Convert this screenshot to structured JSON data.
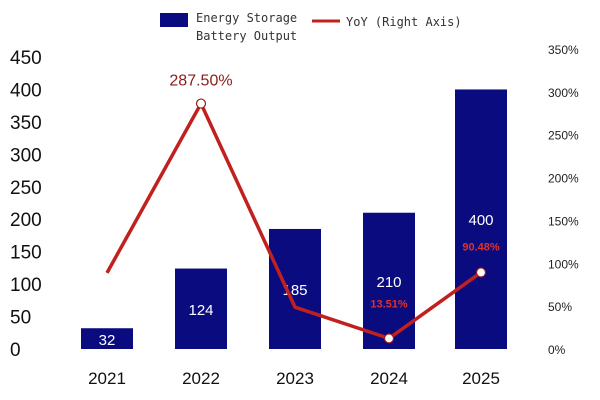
{
  "chart_data": {
    "type": "bar",
    "categories": [
      "2021",
      "2022",
      "2023",
      "2024",
      "2025"
    ],
    "series": [
      {
        "name": "Energy Storage Battery Output",
        "type": "bar",
        "axis": "left",
        "color": "#0b0b80",
        "values": [
          32,
          124,
          185,
          210,
          400
        ],
        "data_labels": [
          "32",
          "124",
          "185",
          "210",
          "400"
        ]
      },
      {
        "name": "YoY (Right Axis)",
        "type": "line",
        "axis": "right",
        "color": "#c0201e",
        "values": [
          90,
          287.5,
          50,
          13.51,
          90.48
        ],
        "data_labels": [
          "",
          "287.50%",
          "",
          "13.51%",
          "90.48%"
        ]
      }
    ],
    "legend": {
      "position": "top",
      "items": [
        {
          "line1": "Energy Storage",
          "line2": "Battery Output"
        },
        {
          "line1": "YoY (Right Axis)",
          "line2": ""
        }
      ]
    },
    "y_left": {
      "ylim": [
        0,
        450
      ],
      "ticks": [
        "0",
        "50",
        "100",
        "150",
        "200",
        "250",
        "300",
        "350",
        "400",
        "450"
      ]
    },
    "y_right": {
      "ylim": [
        0,
        350
      ],
      "ticks": [
        "0%",
        "50%",
        "100%",
        "150%",
        "200%",
        "250%",
        "300%",
        "350%"
      ]
    },
    "grid": false,
    "title": "",
    "xlabel": "",
    "ylabel": ""
  }
}
